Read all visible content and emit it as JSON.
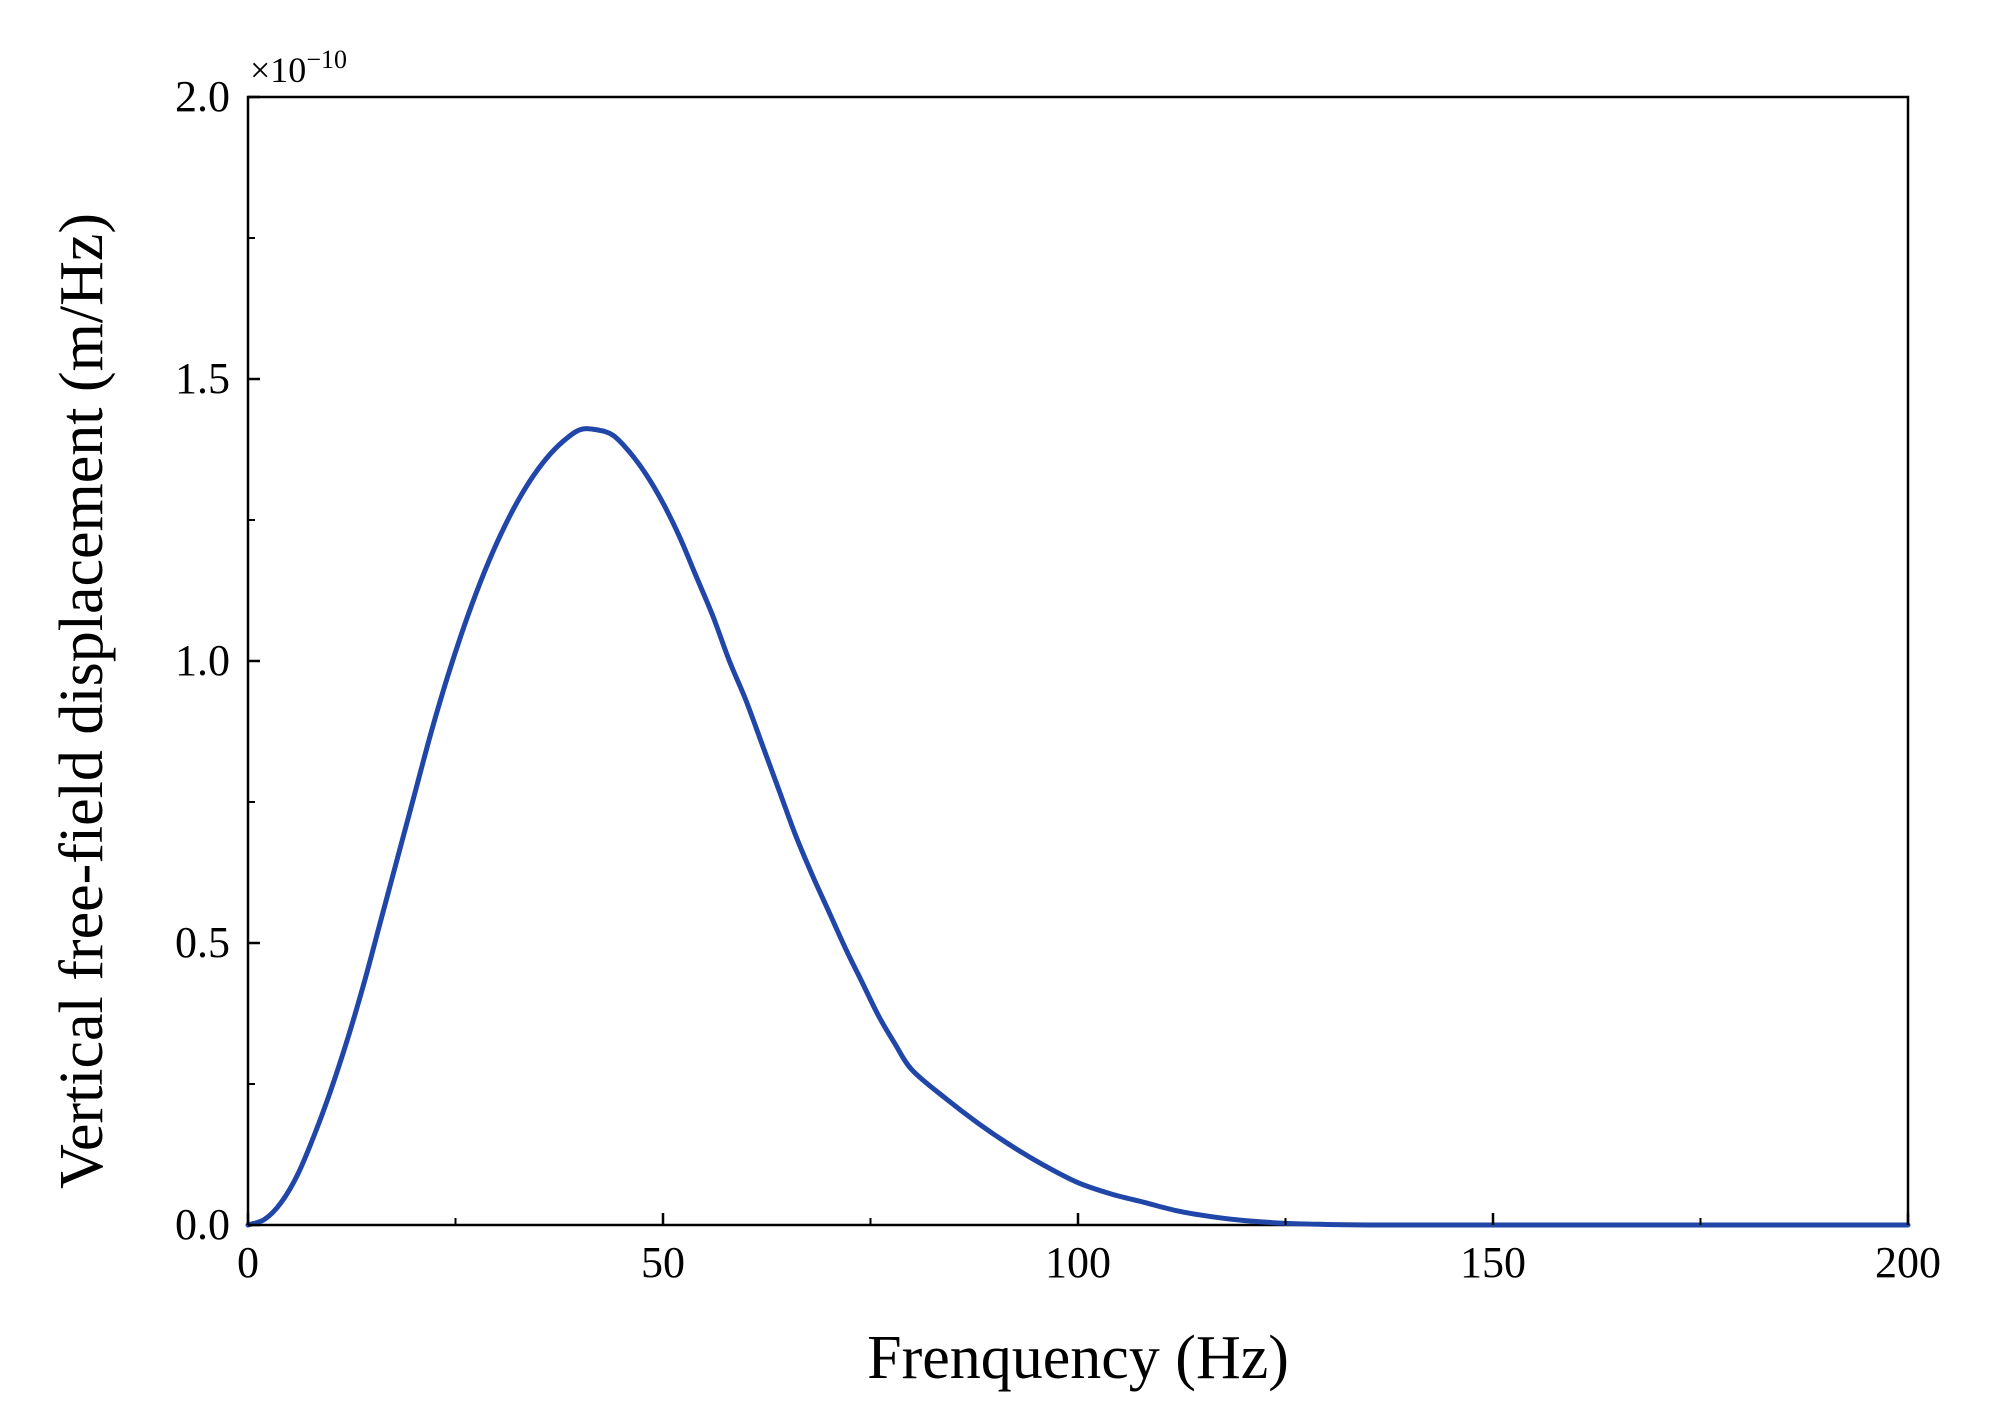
{
  "chart_data": {
    "type": "line",
    "title": "",
    "xlabel": "Frenquency (Hz)",
    "ylabel": "Vertical free-field displacement (m/Hz)",
    "y_exponent": {
      "base": "×10",
      "power": "−10"
    },
    "xlim": [
      0,
      200
    ],
    "ylim": [
      0,
      2.0
    ],
    "x_ticks": [
      0,
      50,
      100,
      150,
      200
    ],
    "x_tick_labels": [
      "0",
      "50",
      "100",
      "150",
      "200"
    ],
    "y_ticks": [
      0,
      0.5,
      1.0,
      1.5,
      2.0
    ],
    "y_tick_labels": [
      "0.0",
      "0.5",
      "1.0",
      "1.5",
      "2.0"
    ],
    "grid": false,
    "legend": "none",
    "line_color": "#2046a8",
    "series": [
      {
        "x": [
          0,
          2,
          4,
          6,
          8,
          10,
          12,
          14,
          16,
          18,
          20,
          22,
          24,
          26,
          28,
          30,
          32,
          34,
          36,
          38,
          40,
          42,
          44,
          46,
          48,
          50,
          52,
          54,
          56,
          58,
          60,
          62,
          64,
          66,
          68,
          70,
          72,
          74,
          76,
          78,
          80,
          84,
          88,
          92,
          96,
          100,
          104,
          108,
          112,
          116,
          120,
          125,
          130,
          135,
          140,
          150,
          160,
          170,
          180,
          190,
          200
        ],
        "y": [
          0.0,
          0.01,
          0.04,
          0.09,
          0.16,
          0.24,
          0.33,
          0.43,
          0.54,
          0.65,
          0.76,
          0.87,
          0.97,
          1.06,
          1.14,
          1.21,
          1.27,
          1.32,
          1.36,
          1.39,
          1.41,
          1.41,
          1.4,
          1.37,
          1.33,
          1.28,
          1.22,
          1.15,
          1.08,
          1.0,
          0.93,
          0.85,
          0.77,
          0.69,
          0.62,
          0.555,
          0.49,
          0.43,
          0.37,
          0.32,
          0.275,
          0.225,
          0.18,
          0.14,
          0.105,
          0.075,
          0.055,
          0.04,
          0.025,
          0.015,
          0.008,
          0.003,
          0.001,
          0.0,
          0.0,
          0.0,
          0.0,
          0.0,
          0.0,
          0.0,
          0.0
        ]
      }
    ]
  }
}
